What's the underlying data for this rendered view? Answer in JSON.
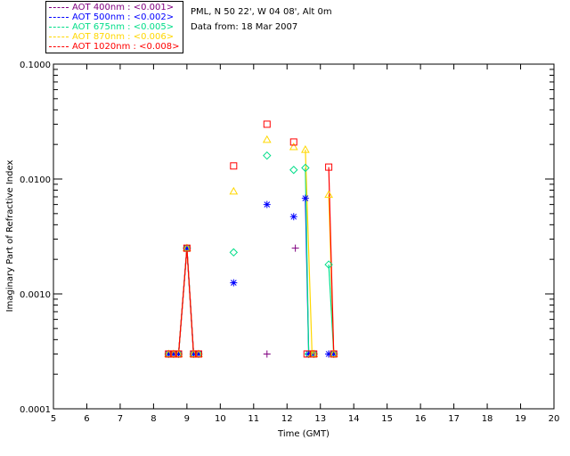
{
  "legend": [
    {
      "label": "AOT  400nm : <0.001>",
      "color": "#800080"
    },
    {
      "label": "AOT  500nm : <0.002>",
      "color": "#0000ff"
    },
    {
      "label": "AOT  675nm : <0.005>",
      "color": "#00dd88"
    },
    {
      "label": "AOT  870nm : <0.006>",
      "color": "#ffd700"
    },
    {
      "label": "AOT 1020nm : <0.008>",
      "color": "#ff0000"
    }
  ],
  "info": {
    "site": "PML, N 50 22', W 04 08', Alt 0m",
    "data_from": "Data from: 18 Mar 2007"
  },
  "chart_data": {
    "type": "scatter",
    "xlabel": "Time (GMT)",
    "ylabel": "Imaginary Part of Refractive Index",
    "xlim": [
      5,
      20
    ],
    "ylim": [
      0.0001,
      0.1
    ],
    "yscale": "log",
    "xticks": [
      "5",
      "6",
      "7",
      "8",
      "9",
      "10",
      "11",
      "12",
      "13",
      "14",
      "15",
      "16",
      "17",
      "18",
      "19",
      "20"
    ],
    "yticks": [
      "0.0001",
      "0.0010",
      "0.0100",
      "0.1000"
    ],
    "grid": false,
    "legend_position": "top-left outside",
    "series": [
      {
        "name": "AOT  400nm : <0.001>",
        "marker": "plus",
        "color": "#800080",
        "points": [
          [
            8.45,
            0.0003
          ],
          [
            8.6,
            0.0003
          ],
          [
            8.75,
            0.0003
          ],
          [
            9.0,
            0.0025
          ],
          [
            9.2,
            0.0003
          ],
          [
            9.35,
            0.0003
          ],
          [
            11.4,
            0.0003
          ],
          [
            12.25,
            0.0025
          ],
          [
            12.65,
            0.0003
          ],
          [
            12.8,
            0.0003
          ],
          [
            13.25,
            0.0003
          ],
          [
            13.4,
            0.0003
          ]
        ]
      },
      {
        "name": "AOT  500nm : <0.002>",
        "marker": "asterisk",
        "color": "#0000ff",
        "points": [
          [
            8.45,
            0.0003
          ],
          [
            8.6,
            0.0003
          ],
          [
            8.75,
            0.0003
          ],
          [
            9.0,
            0.0025
          ],
          [
            9.2,
            0.0003
          ],
          [
            9.35,
            0.0003
          ],
          [
            10.4,
            0.00125
          ],
          [
            11.4,
            0.006
          ],
          [
            12.2,
            0.0047
          ],
          [
            12.55,
            0.0068
          ],
          [
            12.65,
            0.0003
          ],
          [
            12.8,
            0.0003
          ],
          [
            13.25,
            0.0003
          ],
          [
            13.4,
            0.0003
          ]
        ]
      },
      {
        "name": "AOT  675nm : <0.005>",
        "marker": "diamond",
        "color": "#00dd88",
        "points": [
          [
            8.45,
            0.0003
          ],
          [
            8.6,
            0.0003
          ],
          [
            8.75,
            0.0003
          ],
          [
            9.0,
            0.0025
          ],
          [
            9.2,
            0.0003
          ],
          [
            9.35,
            0.0003
          ],
          [
            10.4,
            0.0023
          ],
          [
            11.4,
            0.016
          ],
          [
            12.2,
            0.012
          ],
          [
            12.55,
            0.0125
          ],
          [
            12.65,
            0.0003
          ],
          [
            12.8,
            0.0003
          ],
          [
            13.25,
            0.0018
          ],
          [
            13.4,
            0.0003
          ]
        ]
      },
      {
        "name": "AOT  870nm : <0.006>",
        "marker": "triangle",
        "color": "#ffd700",
        "points": [
          [
            8.45,
            0.0003
          ],
          [
            8.6,
            0.0003
          ],
          [
            8.75,
            0.0003
          ],
          [
            9.0,
            0.0025
          ],
          [
            9.2,
            0.0003
          ],
          [
            9.35,
            0.0003
          ],
          [
            10.4,
            0.0078
          ],
          [
            11.4,
            0.022
          ],
          [
            12.2,
            0.019
          ],
          [
            12.55,
            0.018
          ],
          [
            12.75,
            0.0003
          ],
          [
            12.8,
            0.0003
          ],
          [
            13.25,
            0.0073
          ],
          [
            13.4,
            0.0003
          ]
        ]
      },
      {
        "name": "AOT 1020nm : <0.008>",
        "marker": "square",
        "color": "#ff0000",
        "points": [
          [
            8.45,
            0.0003
          ],
          [
            8.6,
            0.0003
          ],
          [
            8.75,
            0.0003
          ],
          [
            9.0,
            0.0025
          ],
          [
            9.2,
            0.0003
          ],
          [
            9.35,
            0.0003
          ],
          [
            10.4,
            0.013
          ],
          [
            11.4,
            0.03
          ],
          [
            12.2,
            0.021
          ],
          [
            12.6,
            0.0003
          ],
          [
            12.8,
            0.0003
          ],
          [
            13.25,
            0.0127
          ],
          [
            13.4,
            0.0003
          ]
        ]
      }
    ]
  }
}
